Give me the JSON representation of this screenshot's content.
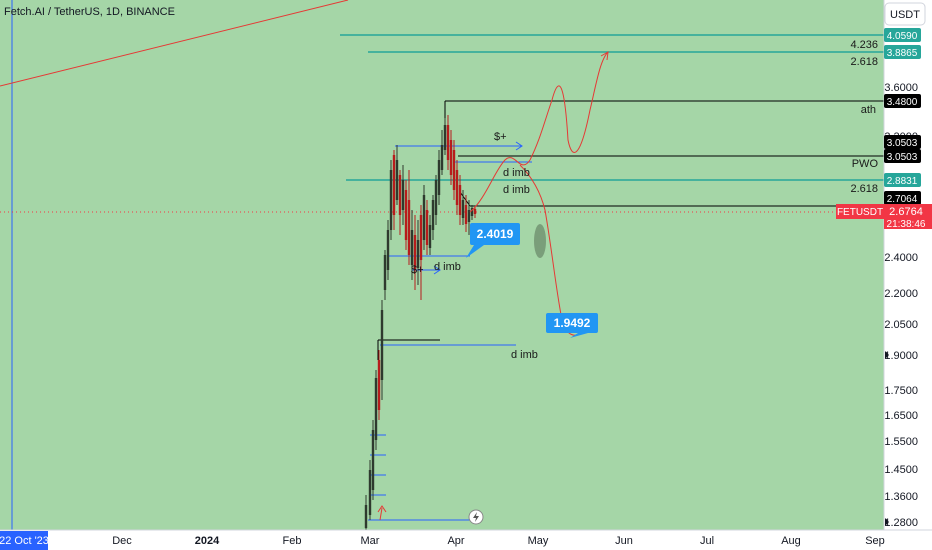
{
  "header": {
    "symbol_text": "Fetch.AI / TetherUS, 1D, BINANCE",
    "currency_button": "USDT"
  },
  "colors": {
    "background": "#a5d6a7",
    "price_scale_bg": "#ffffff",
    "candle_up": "#2e3a2e",
    "candle_down": "#b71c1c",
    "teal_level": "#26a69a",
    "red_path": "#e53935",
    "blue_line": "#2962ff",
    "callout": "#2196f3",
    "current_price": "#f23645"
  },
  "chart_data": {
    "type": "candlestick",
    "symbol": "FETUSDT",
    "x_tick_labels": [
      "22 Oct '23",
      "Dec",
      "2024",
      "Feb",
      "Mar",
      "Apr",
      "May",
      "Jun",
      "Jul",
      "Aug",
      "Sep"
    ],
    "y_tick_labels": [
      "3.6000",
      "3.2000",
      "2.4000",
      "2.2000",
      "2.0500",
      "1.9000",
      "1.7500",
      "1.6500",
      "1.5500",
      "1.4500",
      "1.3600",
      "1.2800"
    ],
    "price_badges": [
      {
        "value": "4.0590",
        "color": "#26a69a",
        "text_color": "#ffffff"
      },
      {
        "value": "3.8865",
        "color": "#26a69a",
        "text_color": "#ffffff"
      },
      {
        "value": "3.4800",
        "color": "#000000",
        "text_color": "#ffffff"
      },
      {
        "value": "3.0503",
        "color": "#000000",
        "text_color": "#ffffff"
      },
      {
        "value": "3.0503",
        "color": "#000000",
        "text_color": "#ffffff"
      },
      {
        "value": "2.8831",
        "color": "#26a69a",
        "text_color": "#ffffff"
      },
      {
        "value": "2.7064",
        "color": "#000000",
        "text_color": "#ffffff"
      }
    ],
    "current_price": {
      "symbol": "FETUSDT",
      "value": "2.6764",
      "countdown": "21:38:46"
    },
    "horizontal_levels": [
      {
        "price": 4.059,
        "color": "#26a69a",
        "label": "4.236"
      },
      {
        "price": 3.8865,
        "color": "#26a69a",
        "label": "2.618"
      },
      {
        "price": 3.48,
        "color": "#000000",
        "label": "ath"
      },
      {
        "price": 3.0503,
        "color": "#000000",
        "label": "PWO"
      },
      {
        "price": 2.8831,
        "color": "#26a69a",
        "label": "2.618"
      },
      {
        "price": 2.7064,
        "color": "#000000",
        "label": ""
      }
    ],
    "callouts": [
      "2.4019",
      "1.9492"
    ],
    "annotations": [
      "$+",
      "d imb",
      "d imb",
      "d imb",
      "$+",
      "d imb"
    ]
  }
}
